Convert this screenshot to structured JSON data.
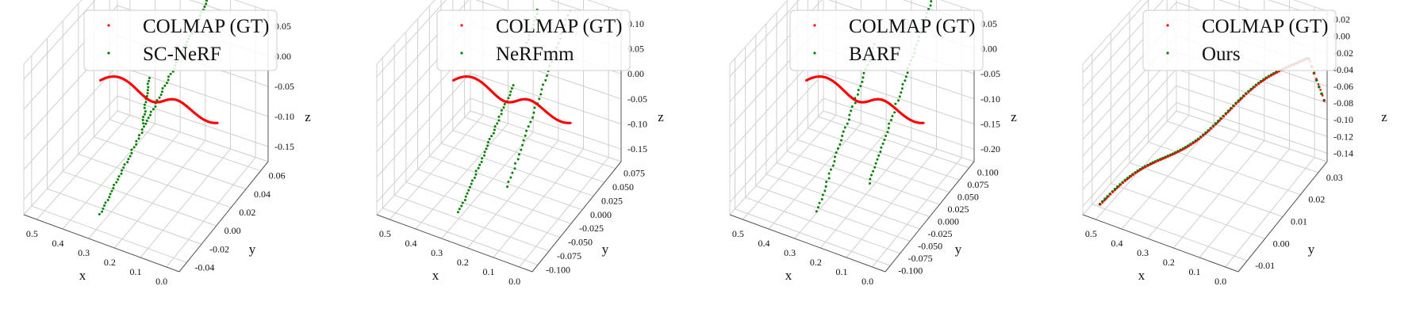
{
  "chart_data": [
    {
      "type": "scatter3d",
      "series": [
        {
          "name": "COLMAP (GT)",
          "color": "#ff0000"
        },
        {
          "name": "SC-NeRF",
          "color": "#008000"
        }
      ],
      "xlabel": "x",
      "ylabel": "y",
      "zlabel": "z",
      "xlim": [
        0.0,
        0.55
      ],
      "ylim": [
        -0.05,
        0.07
      ],
      "zlim": [
        -0.18,
        0.06
      ],
      "xticks": [
        "0.5",
        "0.4",
        "0.3",
        "0.2",
        "0.1",
        "0.0"
      ],
      "yticks": [
        "-0.04",
        "-0.02",
        "0.00",
        "0.02",
        "0.04",
        "0.06"
      ],
      "zticks": [
        "0.05",
        "0.00",
        "-0.05",
        "-0.10",
        "-0.15"
      ],
      "legend": "top"
    },
    {
      "type": "scatter3d",
      "series": [
        {
          "name": "COLMAP (GT)",
          "color": "#ff0000"
        },
        {
          "name": "NeRFmm",
          "color": "#008000"
        }
      ],
      "xlabel": "x",
      "ylabel": "y",
      "zlabel": "z",
      "xlim": [
        0.0,
        0.55
      ],
      "ylim": [
        -0.11,
        0.085
      ],
      "zlim": [
        -0.17,
        0.11
      ],
      "xticks": [
        "0.5",
        "0.4",
        "0.3",
        "0.2",
        "0.1",
        "0.0"
      ],
      "yticks": [
        "-0.100",
        "-0.075",
        "-0.050",
        "-0.025",
        "0.000",
        "0.025",
        "0.050",
        "0.075"
      ],
      "zticks": [
        "0.10",
        "0.05",
        "0.00",
        "-0.05",
        "-0.10",
        "-0.15"
      ],
      "legend": "top"
    },
    {
      "type": "scatter3d",
      "series": [
        {
          "name": "COLMAP (GT)",
          "color": "#ff0000"
        },
        {
          "name": "BARF",
          "color": "#008000"
        }
      ],
      "xlabel": "x",
      "ylabel": "y",
      "zlabel": "z",
      "xlim": [
        0.0,
        0.55
      ],
      "ylim": [
        -0.11,
        0.11
      ],
      "zlim": [
        -0.22,
        0.07
      ],
      "xticks": [
        "0.5",
        "0.4",
        "0.3",
        "0.2",
        "0.1",
        "0.0"
      ],
      "yticks": [
        "-0.100",
        "-0.075",
        "-0.050",
        "-0.025",
        "0.000",
        "0.025",
        "0.050",
        "0.075",
        "0.100"
      ],
      "zticks": [
        "0.05",
        "0.00",
        "-0.05",
        "-0.10",
        "-0.15",
        "-0.20"
      ],
      "legend": "top"
    },
    {
      "type": "scatter3d",
      "series": [
        {
          "name": "COLMAP (GT)",
          "color": "#ff0000"
        },
        {
          "name": "Ours",
          "color": "#008000"
        }
      ],
      "xlabel": "x",
      "ylabel": "y",
      "zlabel": "z",
      "xlim": [
        0.0,
        0.55
      ],
      "ylim": [
        -0.015,
        0.035
      ],
      "zlim": [
        -0.15,
        0.025
      ],
      "xticks": [
        "0.5",
        "0.4",
        "0.3",
        "0.2",
        "0.1",
        "0.0"
      ],
      "yticks": [
        "-0.01",
        "0.00",
        "0.01",
        "0.02",
        "0.03"
      ],
      "zticks": [
        "0.02",
        "0.00",
        "-0.02",
        "-0.04",
        "-0.06",
        "-0.08",
        "-0.10",
        "-0.12",
        "-0.14"
      ],
      "legend": "top"
    }
  ]
}
